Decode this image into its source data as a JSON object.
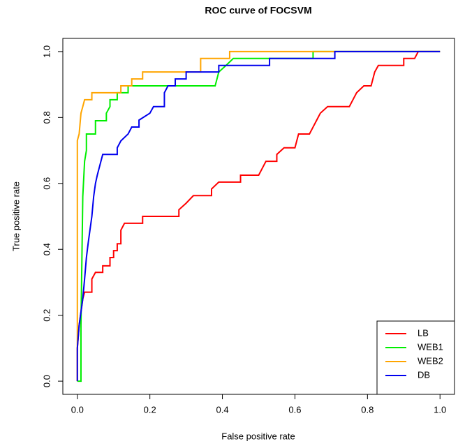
{
  "chart_data": {
    "type": "line",
    "title": "ROC curve of FOCSVM",
    "x_label": "False positive rate",
    "y_label": "True positive rate",
    "xlim": [
      -0.04,
      1.04
    ],
    "ylim": [
      -0.04,
      1.04
    ],
    "xticks": [
      {
        "value": 0,
        "label": "0.0"
      },
      0.2,
      0.4,
      0.6,
      0.8,
      {
        "value": 1,
        "label": "1.0"
      }
    ],
    "yticks": [
      {
        "value": 0,
        "label": "0.0"
      },
      0.2,
      0.4,
      0.6,
      0.8,
      {
        "value": 1,
        "label": "1.0"
      }
    ],
    "legend": "bottom-right",
    "series": [
      {
        "name": "LB",
        "color": "#ff0000",
        "x": [
          0,
          0,
          0.005,
          0.01,
          0.015,
          0.02,
          0.04,
          0.04,
          0.05,
          0.07,
          0.07,
          0.09,
          0.09,
          0.1,
          0.1,
          0.11,
          0.11,
          0.12,
          0.12,
          0.13,
          0.18,
          0.18,
          0.28,
          0.28,
          0.3,
          0.32,
          0.37,
          0.37,
          0.39,
          0.45,
          0.45,
          0.5,
          0.51,
          0.52,
          0.55,
          0.55,
          0.57,
          0.6,
          0.61,
          0.64,
          0.65,
          0.66,
          0.67,
          0.69,
          0.75,
          0.76,
          0.77,
          0.79,
          0.81,
          0.82,
          0.83,
          0.9,
          0.9,
          0.93,
          0.94,
          1
        ],
        "values": [
          0,
          0.1,
          0.17,
          0.21,
          0.25,
          0.27,
          0.27,
          0.31,
          0.33,
          0.33,
          0.35,
          0.35,
          0.375,
          0.375,
          0.396,
          0.396,
          0.417,
          0.417,
          0.458,
          0.479,
          0.479,
          0.5,
          0.5,
          0.52,
          0.54,
          0.563,
          0.563,
          0.583,
          0.604,
          0.604,
          0.625,
          0.625,
          0.646,
          0.667,
          0.667,
          0.688,
          0.708,
          0.708,
          0.75,
          0.75,
          0.771,
          0.792,
          0.813,
          0.833,
          0.833,
          0.854,
          0.875,
          0.896,
          0.896,
          0.938,
          0.958,
          0.958,
          0.979,
          0.979,
          1,
          1
        ]
      },
      {
        "name": "WEB1",
        "color": "#00ee00",
        "x": [
          0,
          0.01,
          0.01,
          0.015,
          0.02,
          0.025,
          0.025,
          0.05,
          0.05,
          0.08,
          0.08,
          0.09,
          0.09,
          0.11,
          0.11,
          0.14,
          0.14,
          0.38,
          0.39,
          0.41,
          0.43,
          0.65,
          0.65,
          1
        ],
        "values": [
          0,
          0,
          0.17,
          0.56,
          0.667,
          0.7,
          0.75,
          0.75,
          0.79,
          0.79,
          0.813,
          0.833,
          0.854,
          0.854,
          0.875,
          0.875,
          0.896,
          0.896,
          0.938,
          0.958,
          0.979,
          0.979,
          1,
          1
        ]
      },
      {
        "name": "WEB2",
        "color": "#ffa500",
        "x": [
          0,
          0,
          0.005,
          0.01,
          0.015,
          0.02,
          0.04,
          0.04,
          0.12,
          0.12,
          0.15,
          0.15,
          0.18,
          0.18,
          0.34,
          0.34,
          0.42,
          0.42,
          1
        ],
        "values": [
          0,
          0.73,
          0.75,
          0.813,
          0.833,
          0.854,
          0.854,
          0.875,
          0.875,
          0.896,
          0.896,
          0.917,
          0.917,
          0.938,
          0.938,
          0.979,
          0.979,
          1,
          1
        ]
      },
      {
        "name": "DB",
        "color": "#0000ee",
        "x": [
          0,
          0,
          0.005,
          0.01,
          0.015,
          0.02,
          0.025,
          0.03,
          0.04,
          0.045,
          0.05,
          0.055,
          0.06,
          0.065,
          0.07,
          0.11,
          0.11,
          0.12,
          0.14,
          0.15,
          0.17,
          0.17,
          0.2,
          0.21,
          0.24,
          0.24,
          0.25,
          0.27,
          0.27,
          0.3,
          0.3,
          0.39,
          0.39,
          0.53,
          0.53,
          0.71,
          0.71,
          1
        ],
        "values": [
          0,
          0.1,
          0.17,
          0.21,
          0.25,
          0.31,
          0.375,
          0.42,
          0.5,
          0.56,
          0.6,
          0.625,
          0.646,
          0.667,
          0.688,
          0.688,
          0.708,
          0.729,
          0.75,
          0.771,
          0.771,
          0.792,
          0.813,
          0.833,
          0.833,
          0.875,
          0.896,
          0.896,
          0.917,
          0.917,
          0.938,
          0.938,
          0.958,
          0.958,
          0.979,
          0.979,
          1,
          1
        ]
      }
    ]
  }
}
